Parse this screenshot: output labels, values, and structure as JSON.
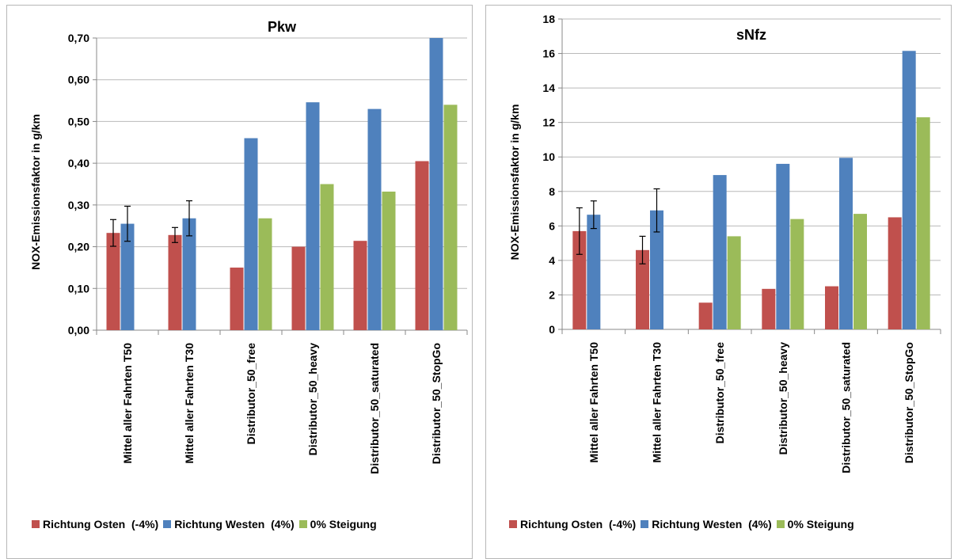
{
  "chart_data": [
    {
      "type": "bar",
      "title": "Pkw",
      "ylabel": "NOX-Emissionsfaktor  in g/km",
      "ylim": [
        0,
        0.7
      ],
      "yticks": [
        "0,00",
        "0,10",
        "0,20",
        "0,30",
        "0,40",
        "0,50",
        "0,60",
        "0,70"
      ],
      "grid": true,
      "legend_position": "bottom",
      "categories": [
        "Mittel aller Fahrten T50",
        "Mittel aller Fahrten T30",
        "Distributor_50_free",
        "Distributor_50_heavy",
        "Distributor_50_saturated",
        "Distributor_50_StopGo"
      ],
      "series": [
        {
          "name": "Richtung Osten  (-4%)",
          "color": "#c0504d",
          "values": [
            0.233,
            0.228,
            0.15,
            0.2,
            0.214,
            0.405
          ],
          "error": [
            0.032,
            0.018,
            null,
            null,
            null,
            null
          ]
        },
        {
          "name": "Richtung Westen  (4%)",
          "color": "#4f81bd",
          "values": [
            0.255,
            0.268,
            0.46,
            0.546,
            0.53,
            0.7
          ],
          "error": [
            0.042,
            0.042,
            null,
            null,
            null,
            null
          ]
        },
        {
          "name": "0% Steigung",
          "color": "#9bbb59",
          "values": [
            null,
            null,
            0.268,
            0.35,
            0.332,
            0.54
          ],
          "error": [
            null,
            null,
            null,
            null,
            null,
            null
          ]
        }
      ]
    },
    {
      "type": "bar",
      "title": "sNfz",
      "ylabel": "NOX-Emissionsfaktor  in g/km",
      "ylim": [
        0,
        18
      ],
      "yticks": [
        "0",
        "2",
        "4",
        "6",
        "8",
        "10",
        "12",
        "14",
        "16",
        "18"
      ],
      "grid": true,
      "legend_position": "bottom",
      "categories": [
        "Mittel aller Fahrten T50",
        "Mittel aller Fahrten T30",
        "Distributor_50_free",
        "Distributor_50_heavy",
        "Distributor_50_saturated",
        "Distributor_50_StopGo"
      ],
      "series": [
        {
          "name": "Richtung Osten  (-4%)",
          "color": "#c0504d",
          "values": [
            5.7,
            4.6,
            1.55,
            2.35,
            2.5,
            6.5
          ],
          "error": [
            1.35,
            0.8,
            null,
            null,
            null,
            null
          ]
        },
        {
          "name": "Richtung Westen  (4%)",
          "color": "#4f81bd",
          "values": [
            6.65,
            6.9,
            8.95,
            9.6,
            9.95,
            16.15
          ],
          "error": [
            0.8,
            1.25,
            null,
            null,
            null,
            null
          ]
        },
        {
          "name": "0% Steigung",
          "color": "#9bbb59",
          "values": [
            null,
            null,
            5.4,
            6.4,
            6.7,
            12.3
          ],
          "error": [
            null,
            null,
            null,
            null,
            null,
            null
          ]
        }
      ]
    }
  ]
}
